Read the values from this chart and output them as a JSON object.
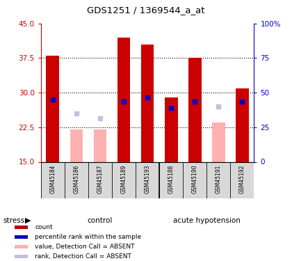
{
  "title": "GDS1251 / 1369544_a_at",
  "samples": [
    "GSM45184",
    "GSM45186",
    "GSM45187",
    "GSM45189",
    "GSM45193",
    "GSM45188",
    "GSM45190",
    "GSM45191",
    "GSM45192"
  ],
  "ylim_left": [
    15,
    45
  ],
  "ylim_right": [
    0,
    100
  ],
  "yticks_left": [
    15,
    22.5,
    30,
    37.5,
    45
  ],
  "yticks_right": [
    0,
    25,
    50,
    75,
    100
  ],
  "red_bar_top": [
    38.0,
    null,
    null,
    42.0,
    40.5,
    29.0,
    37.5,
    null,
    31.0
  ],
  "pink_bar_top": [
    null,
    22.0,
    22.0,
    null,
    null,
    null,
    null,
    23.5,
    null
  ],
  "red_bar_bottom": 15,
  "blue_square_y": [
    28.5,
    null,
    null,
    28.0,
    29.0,
    26.7,
    28.0,
    null,
    28.0
  ],
  "lavender_square_y": [
    null,
    25.5,
    24.5,
    null,
    null,
    null,
    null,
    27.0,
    null
  ],
  "bar_width": 0.55,
  "control_color": "#c8f5c8",
  "acute_color": "#44dd44",
  "label_area_color": "#d8d8d8",
  "stress_label": "stress",
  "control_label": "control",
  "acute_label": "acute hypotension",
  "legend_items": [
    {
      "color": "#bb0000",
      "label": "count"
    },
    {
      "color": "#0000bb",
      "label": "percentile rank within the sample"
    },
    {
      "color": "#ffb0b0",
      "label": "value, Detection Call = ABSENT"
    },
    {
      "color": "#c0c0e0",
      "label": "rank, Detection Call = ABSENT"
    }
  ],
  "left_tick_color": "#cc0000",
  "right_tick_color": "#0000cc",
  "n_control": 5,
  "n_acute": 4
}
